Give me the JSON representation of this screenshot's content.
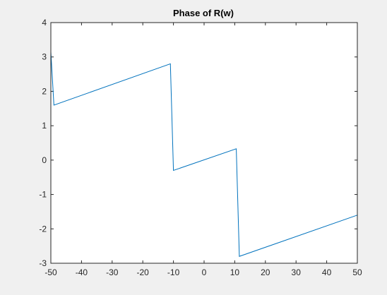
{
  "chart_data": {
    "type": "line",
    "title": "Phase of R(w)",
    "xlabel": "",
    "ylabel": "",
    "xlim": [
      -50,
      50
    ],
    "ylim": [
      -3,
      4
    ],
    "x_ticks": [
      -50,
      -40,
      -30,
      -20,
      -10,
      0,
      10,
      20,
      30,
      40,
      50
    ],
    "y_ticks": [
      -3,
      -2,
      -1,
      0,
      1,
      2,
      3,
      4
    ],
    "x_tick_labels": [
      "-50",
      "-40",
      "-30",
      "-20",
      "-10",
      "0",
      "10",
      "20",
      "30",
      "40",
      "50"
    ],
    "y_tick_labels": [
      "-3",
      "-2",
      "-1",
      "0",
      "1",
      "2",
      "3",
      "4"
    ],
    "grid": false,
    "series": [
      {
        "color": "#0072bd",
        "x": [
          -50,
          -49,
          -11,
          -10,
          10.5,
          11.5,
          50
        ],
        "y": [
          3.15,
          1.6,
          2.8,
          -0.3,
          0.33,
          -2.8,
          -1.6
        ]
      }
    ]
  }
}
